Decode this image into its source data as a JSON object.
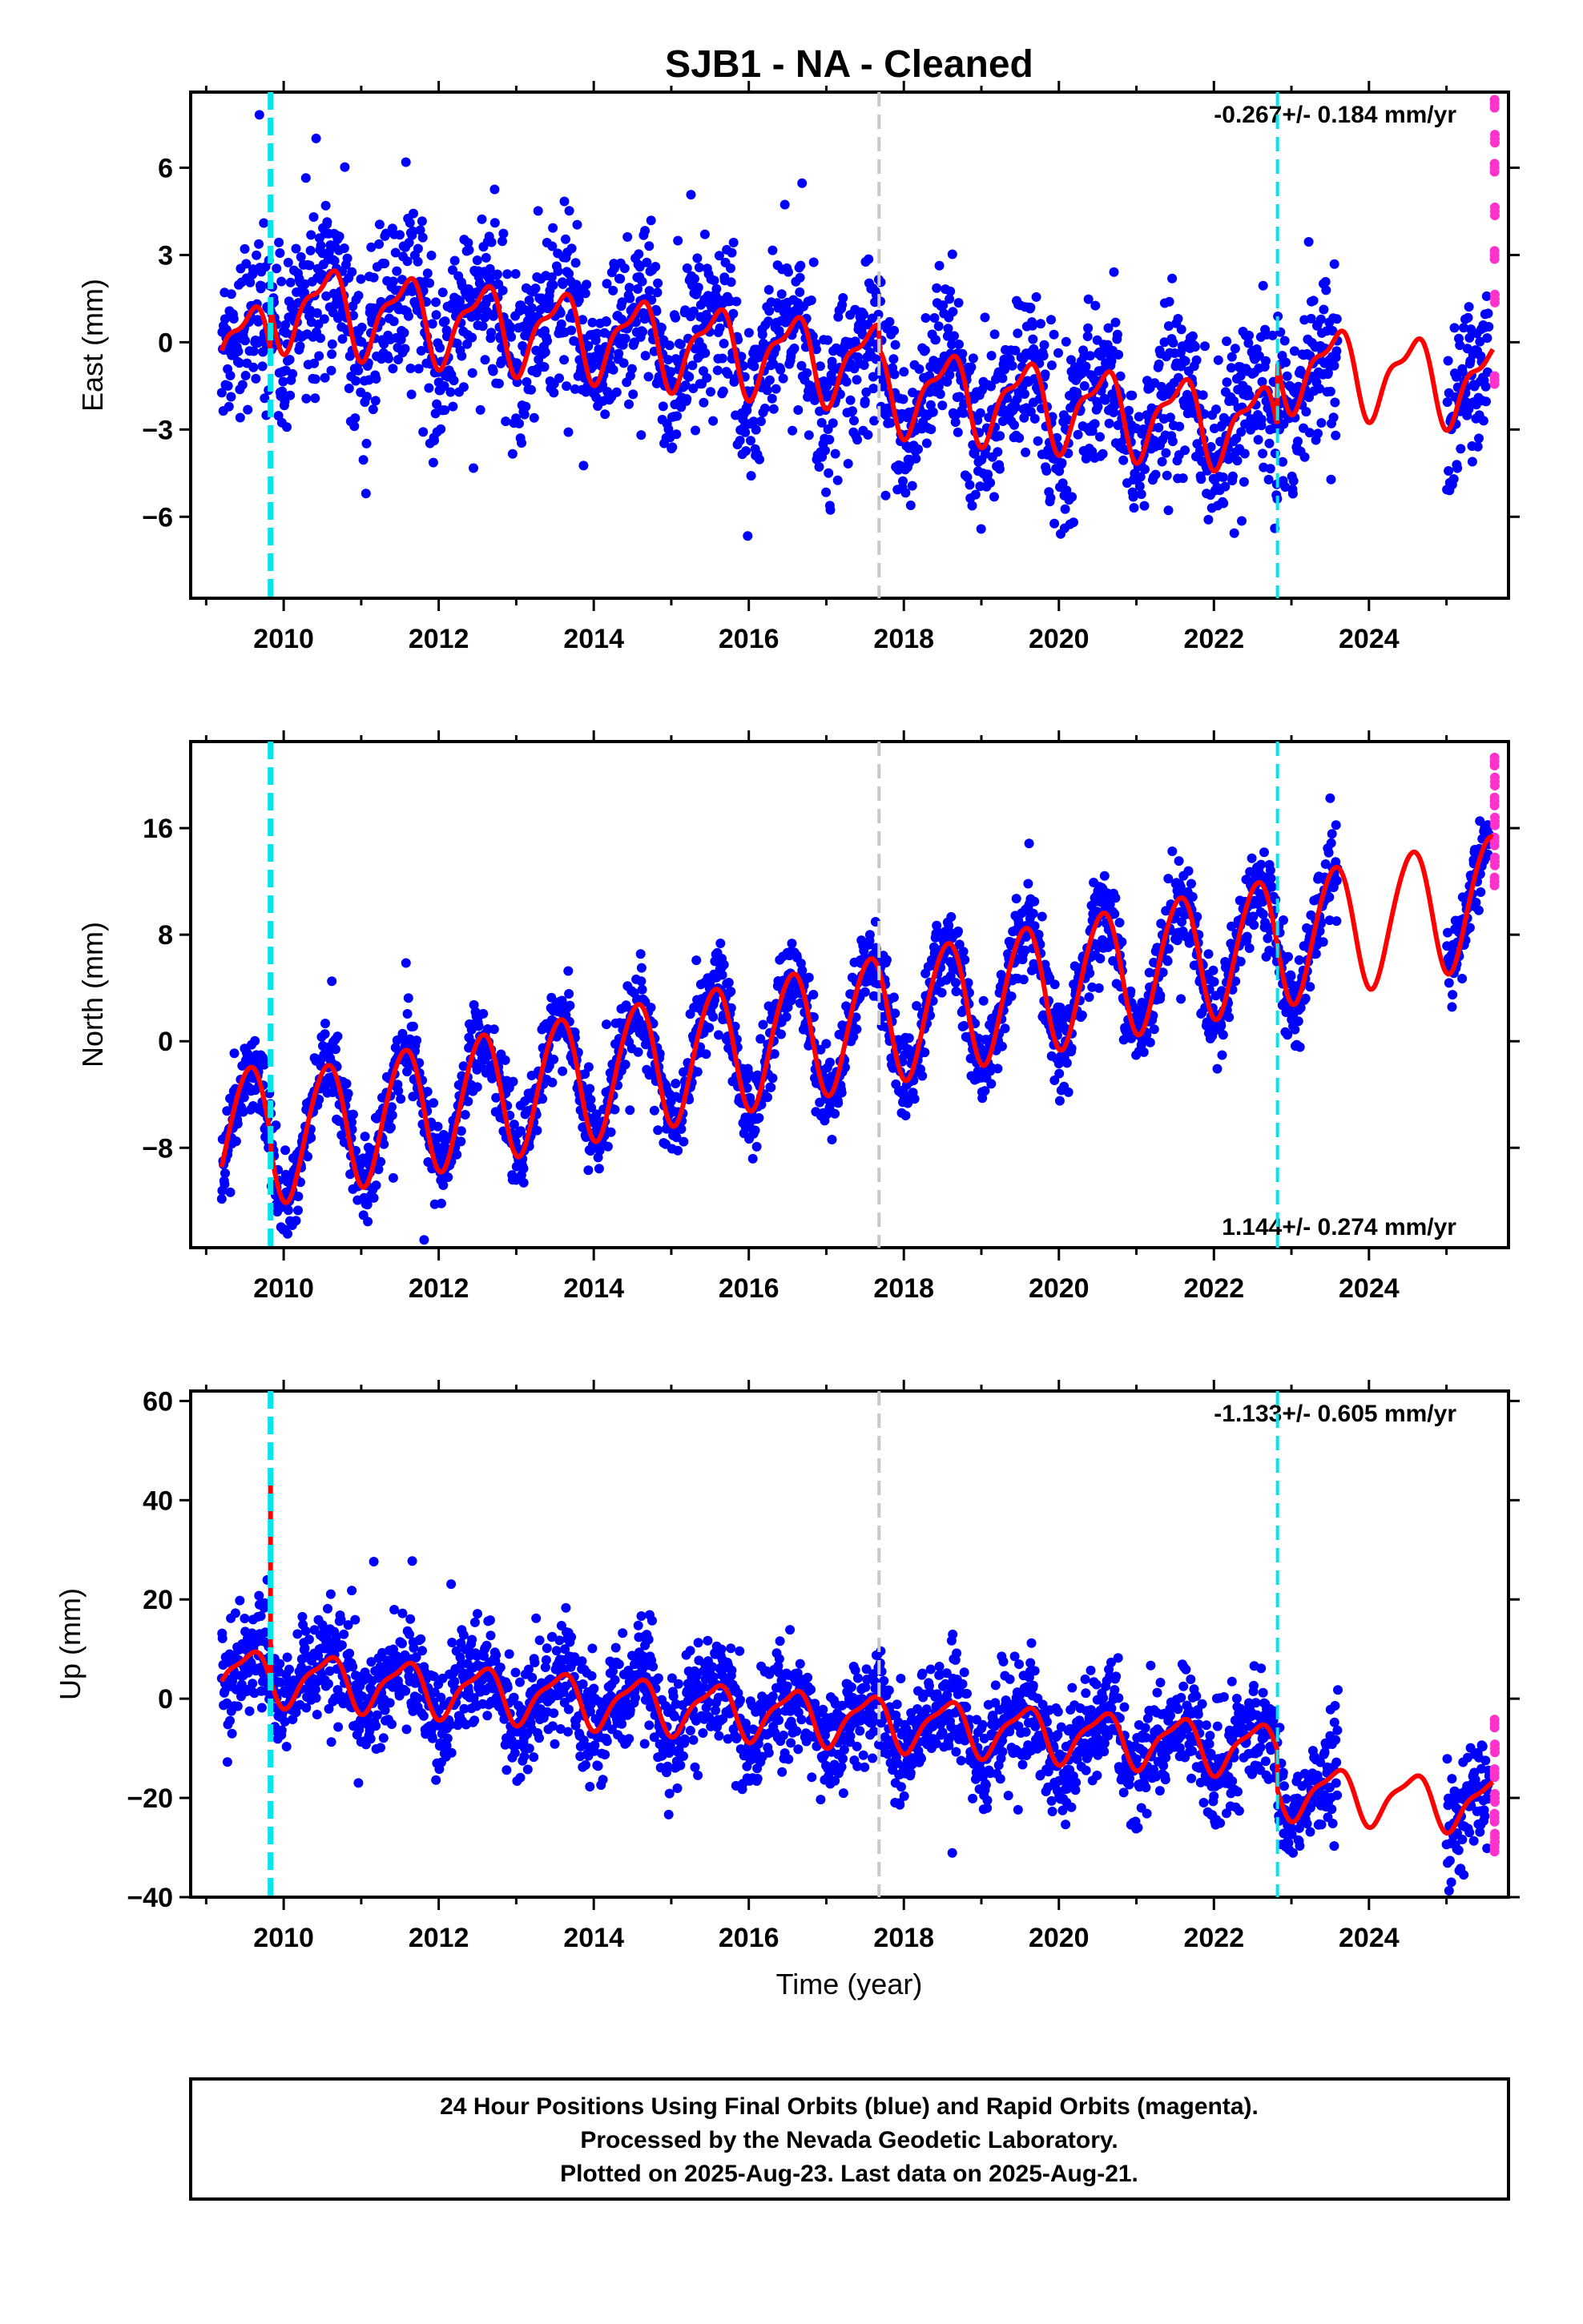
{
  "title": "SJB1  - NA - Cleaned",
  "x_axis_label": "Time (year)",
  "x_ticks": [
    2010,
    2012,
    2014,
    2016,
    2018,
    2020,
    2022,
    2024
  ],
  "colors": {
    "final_orbits": "#0000ff",
    "rapid_orbits": "#ff33cc",
    "model": "#ff0000",
    "equipment_change": "#00e5ee",
    "other_change": "#c8c8c8"
  },
  "footer": {
    "line1": "24 Hour Positions Using Final Orbits (blue) and Rapid Orbits (magenta).",
    "line2": "Processed by the Nevada Geodetic Laboratory.",
    "line3": "Plotted on 2025-Aug-23. Last data on 2025-Aug-21."
  },
  "chart_data": [
    {
      "type": "scatter",
      "component": "East",
      "ylabel": "East (mm)",
      "xlim": [
        2008.8,
        2025.8
      ],
      "ylim": [
        -8.8,
        8.6
      ],
      "yticks": [
        -6,
        -3,
        0,
        3,
        6
      ],
      "ytick_labels": [
        "−6",
        "−3",
        "0",
        "3",
        "6"
      ],
      "rate_text": "-0.267+/- 0.184 mm/yr",
      "rate_position": "top-right",
      "vlines": [
        {
          "x": 2009.83,
          "color": "cyan",
          "style": "thick-dashed"
        },
        {
          "x": 2017.68,
          "color": "gray",
          "style": "dashed"
        },
        {
          "x": 2022.82,
          "color": "cyan",
          "style": "dashed"
        }
      ],
      "data_span": [
        2009.2,
        2025.6
      ],
      "gap": [
        2023.6,
        2025.0
      ],
      "model": {
        "offset": 0.0,
        "rate_mm_per_yr": -0.267,
        "annual_amp": 1.3,
        "semiannual_amp": 0.5,
        "noise_sd": 1.4,
        "steps": [
          {
            "x": 2009.83,
            "dy": 1.5
          },
          {
            "x": 2017.68,
            "dy": -0.8
          },
          {
            "x": 2022.82,
            "dy": 2.2
          }
        ]
      },
      "rapid_y": [
        8.2,
        7.0,
        6.0,
        4.5,
        3.0,
        1.5,
        -1.3
      ]
    },
    {
      "type": "scatter",
      "component": "North",
      "ylabel": "North (mm)",
      "xlim": [
        2008.8,
        2025.8
      ],
      "ylim": [
        -15.5,
        22.5
      ],
      "yticks": [
        -8,
        0,
        8,
        16
      ],
      "ytick_labels": [
        "−8",
        "0",
        "8",
        "16"
      ],
      "rate_text": "1.144+/- 0.274 mm/yr",
      "rate_position": "bottom-right",
      "vlines": [
        {
          "x": 2009.83,
          "color": "cyan",
          "style": "thick-dashed"
        },
        {
          "x": 2017.68,
          "color": "gray",
          "style": "dashed"
        },
        {
          "x": 2022.82,
          "color": "cyan",
          "style": "dashed"
        }
      ],
      "data_span": [
        2009.2,
        2025.6
      ],
      "gap": [
        2023.6,
        2025.0
      ],
      "model": {
        "offset": -7.0,
        "rate_mm_per_yr": 1.144,
        "annual_amp": 4.8,
        "semiannual_amp": 0.4,
        "noise_sd": 1.6,
        "steps": [
          {
            "x": 2009.83,
            "dy": -1.0
          },
          {
            "x": 2017.68,
            "dy": 0.0
          },
          {
            "x": 2022.82,
            "dy": 0.0
          }
        ]
      },
      "rapid_y": [
        21.0,
        19.5,
        18.0,
        16.5,
        15.0,
        13.5,
        12.0
      ]
    },
    {
      "type": "scatter",
      "component": "Up",
      "ylabel": "Up (mm)",
      "xlim": [
        2008.8,
        2025.8
      ],
      "ylim": [
        -40,
        62
      ],
      "yticks": [
        -40,
        -20,
        0,
        20,
        40,
        60
      ],
      "ytick_labels": [
        "−40",
        "−20",
        "0",
        "20",
        "40",
        "60"
      ],
      "rate_text": "-1.133+/- 0.605 mm/yr",
      "rate_position": "top-right",
      "vlines": [
        {
          "x": 2009.83,
          "color": "cyan",
          "style": "thick-dashed"
        },
        {
          "x": 2017.68,
          "color": "gray",
          "style": "dashed"
        },
        {
          "x": 2022.82,
          "color": "cyan",
          "style": "dashed"
        }
      ],
      "data_span": [
        2009.2,
        2025.6
      ],
      "gap": [
        2023.6,
        2025.0
      ],
      "model": {
        "offset": 5.0,
        "rate_mm_per_yr": -1.133,
        "annual_amp": 5.0,
        "semiannual_amp": 1.5,
        "noise_sd": 5.5,
        "steps": [
          {
            "x": 2009.83,
            "dy": 0.0
          },
          {
            "x": 2017.68,
            "dy": 0.0
          },
          {
            "x": 2022.82,
            "dy": -8.0
          }
        ]
      },
      "spike": {
        "x": 2009.83,
        "y": 45
      },
      "rapid_y": [
        -5,
        -10,
        -15,
        -20,
        -24,
        -28,
        -30
      ]
    }
  ]
}
